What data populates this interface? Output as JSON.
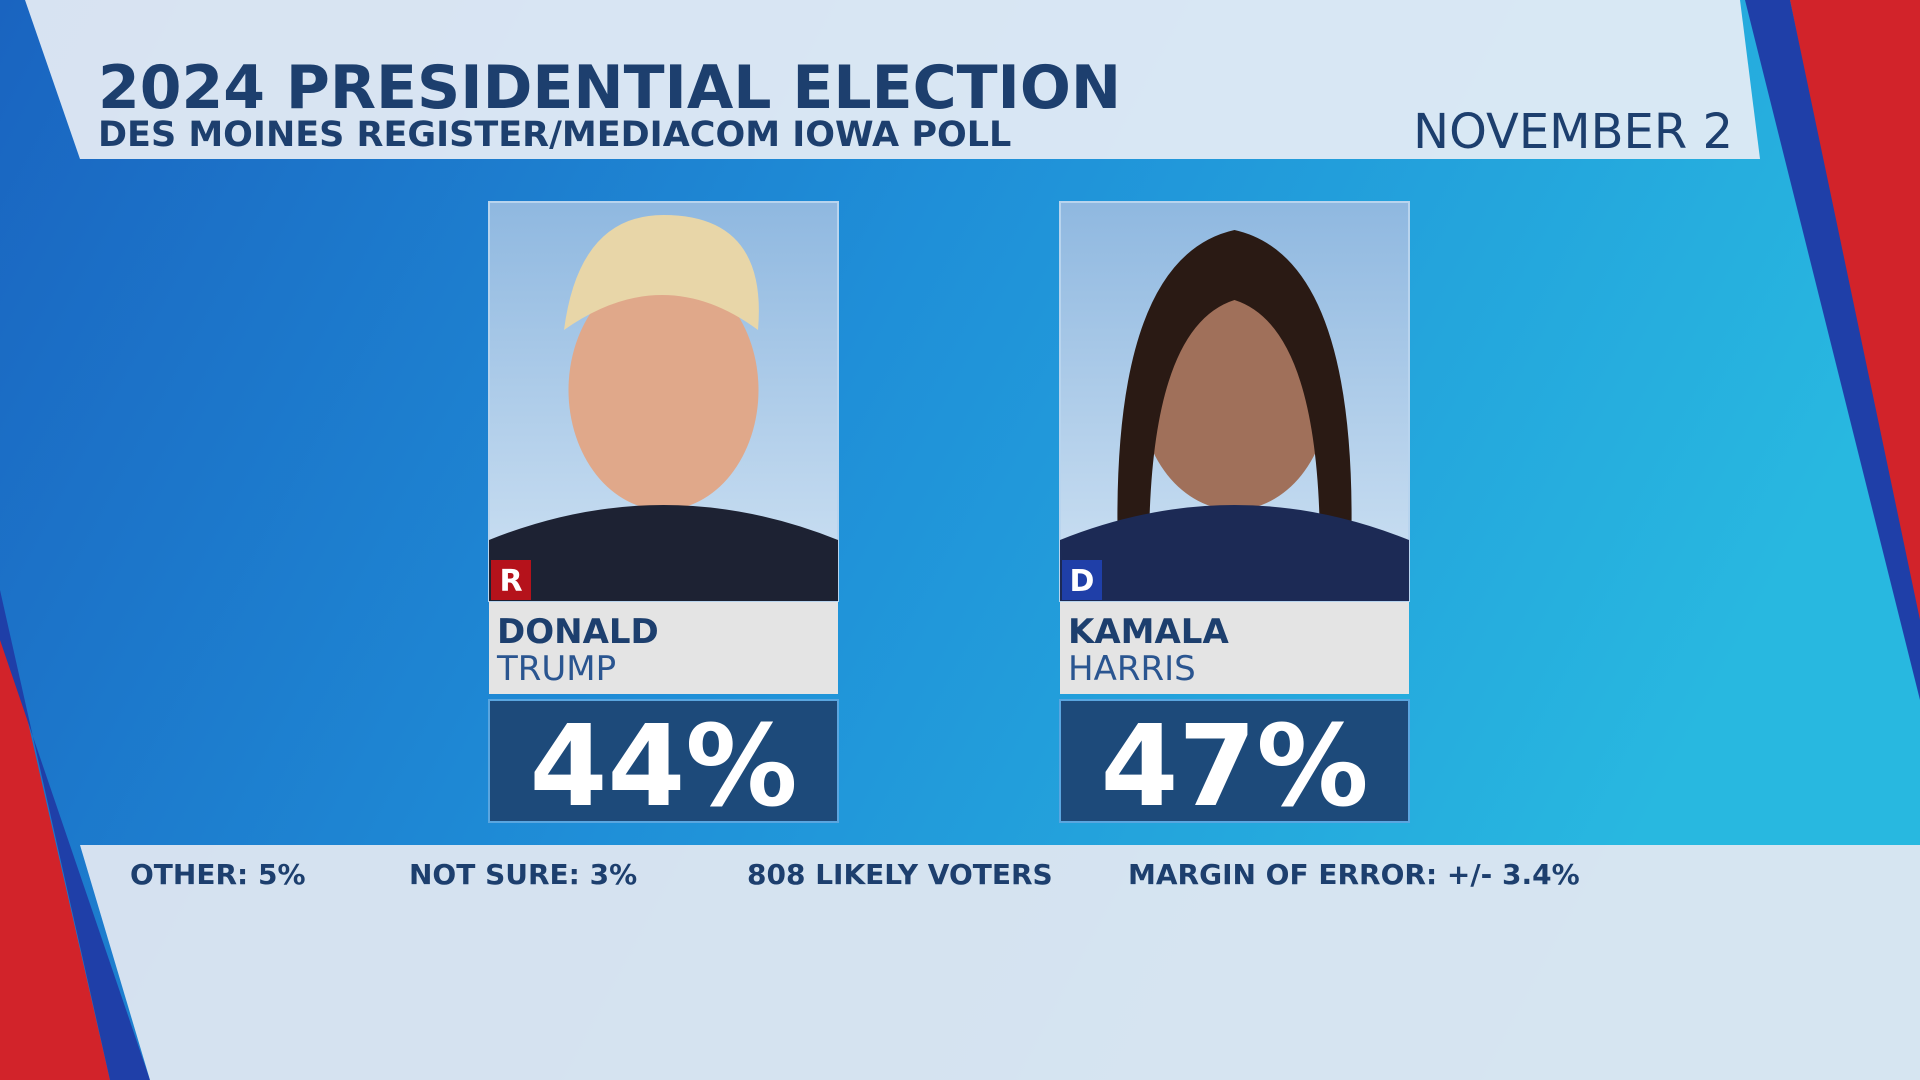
{
  "header": {
    "title": "2024 PRESIDENTIAL ELECTION",
    "subtitle": "DES MOINES REGISTER/MEDIACOM IOWA POLL",
    "date": "NOVEMBER 2"
  },
  "candidates": [
    {
      "party": "R",
      "first_name": "DONALD",
      "last_name": "TRUMP",
      "percent": "44%"
    },
    {
      "party": "D",
      "first_name": "KAMALA",
      "last_name": "HARRIS",
      "percent": "47%"
    }
  ],
  "footer": [
    "OTHER: 5%",
    "NOT SURE: 3%",
    "808 LIKELY VOTERS",
    "MARGIN OF ERROR: +/- 3.4%"
  ]
}
